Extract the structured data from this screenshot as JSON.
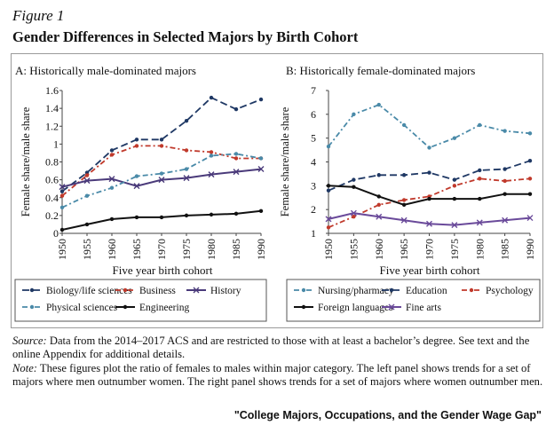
{
  "figure_label": "Figure 1",
  "title": "Gender Differences in Selected Majors by Birth Cohort",
  "source_label": "Source:",
  "source_text": "Data from the 2014–2017 ACS and are restricted to those with at least a bachelor’s degree. See text and the online Appendix for additional details.",
  "note_label": "Note:",
  "note_text": "These figures plot the ratio of females to males within major category. The left panel shows trends for a set of majors where men outnumber women. The right panel shows trends for a set of majors where women outnumber men.",
  "caption": "\"College Majors, Occupations, and the Gender Wage Gap\"",
  "chart_data": [
    {
      "type": "line",
      "title": "A: Historically male-dominated majors",
      "xlabel": "Five year birth cohort",
      "ylabel": "Female share/male share",
      "x": [
        1950,
        1955,
        1960,
        1965,
        1970,
        1975,
        1980,
        1985,
        1990
      ],
      "xticks": [
        "1950",
        "1955",
        "1960",
        "1965",
        "1970",
        "1975",
        "1980",
        "1985",
        "1990"
      ],
      "ylim": [
        0,
        1.6
      ],
      "yticks": [
        "0",
        "0.2",
        "0.4",
        "0.6",
        "0.8",
        "1",
        "1.2",
        "1.4",
        "1.6"
      ],
      "grid": false,
      "legend": "bottom",
      "series": [
        {
          "name": "Biology/life sciences",
          "color": "#1f3864",
          "dash": "8,4",
          "marker": "dot",
          "values": [
            0.47,
            0.68,
            0.93,
            1.05,
            1.05,
            1.26,
            1.52,
            1.39,
            1.5
          ]
        },
        {
          "name": "Business",
          "color": "#c0392b",
          "dash": "6,3,2,3",
          "marker": "dot",
          "values": [
            0.42,
            0.65,
            0.88,
            0.98,
            0.98,
            0.93,
            0.91,
            0.84,
            0.84
          ]
        },
        {
          "name": "History",
          "color": "#4a3a7a",
          "dash": "",
          "marker": "cross",
          "values": [
            0.52,
            0.59,
            0.61,
            0.53,
            0.6,
            0.62,
            0.66,
            0.69,
            0.72
          ]
        },
        {
          "name": "Physical sciences",
          "color": "#4a8aa8",
          "dash": "6,3,2,3",
          "marker": "dot",
          "values": [
            0.29,
            0.42,
            0.51,
            0.64,
            0.67,
            0.72,
            0.87,
            0.89,
            0.84
          ]
        },
        {
          "name": "Engineering",
          "color": "#111111",
          "dash": "",
          "marker": "dot",
          "values": [
            0.04,
            0.1,
            0.16,
            0.18,
            0.18,
            0.2,
            0.21,
            0.22,
            0.25
          ]
        }
      ]
    },
    {
      "type": "line",
      "title": "B: Historically female-dominated majors",
      "xlabel": "Five year birth cohort",
      "ylabel": "Female share/male share",
      "x": [
        1950,
        1955,
        1960,
        1965,
        1970,
        1975,
        1980,
        1985,
        1990
      ],
      "xticks": [
        "1950",
        "1955",
        "1960",
        "1965",
        "1970",
        "1975",
        "1980",
        "1985",
        "1990"
      ],
      "ylim": [
        1,
        7
      ],
      "yticks": [
        "1",
        "2",
        "3",
        "4",
        "5",
        "6",
        "7"
      ],
      "grid": false,
      "legend": "bottom",
      "series": [
        {
          "name": "Nursing/pharmacy",
          "color": "#4a8aa8",
          "dash": "6,3,2,3",
          "marker": "dot",
          "values": [
            4.65,
            6.0,
            6.4,
            5.55,
            4.6,
            5.0,
            5.55,
            5.3,
            5.2
          ]
        },
        {
          "name": "Education",
          "color": "#1f3864",
          "dash": "8,4",
          "marker": "dot",
          "values": [
            2.8,
            3.25,
            3.45,
            3.45,
            3.55,
            3.25,
            3.65,
            3.7,
            4.05
          ]
        },
        {
          "name": "Psychology",
          "color": "#c0392b",
          "dash": "6,3,2,3",
          "marker": "dot",
          "values": [
            1.25,
            1.7,
            2.2,
            2.4,
            2.55,
            3.0,
            3.3,
            3.2,
            3.3
          ]
        },
        {
          "name": "Foreign languages",
          "color": "#111111",
          "dash": "",
          "marker": "dot",
          "values": [
            3.0,
            2.95,
            2.55,
            2.2,
            2.45,
            2.45,
            2.45,
            2.65,
            2.65
          ]
        },
        {
          "name": "Fine arts",
          "color": "#6a4a9a",
          "dash": "",
          "marker": "cross",
          "values": [
            1.6,
            1.85,
            1.7,
            1.55,
            1.4,
            1.35,
            1.45,
            1.55,
            1.65
          ]
        }
      ]
    }
  ]
}
